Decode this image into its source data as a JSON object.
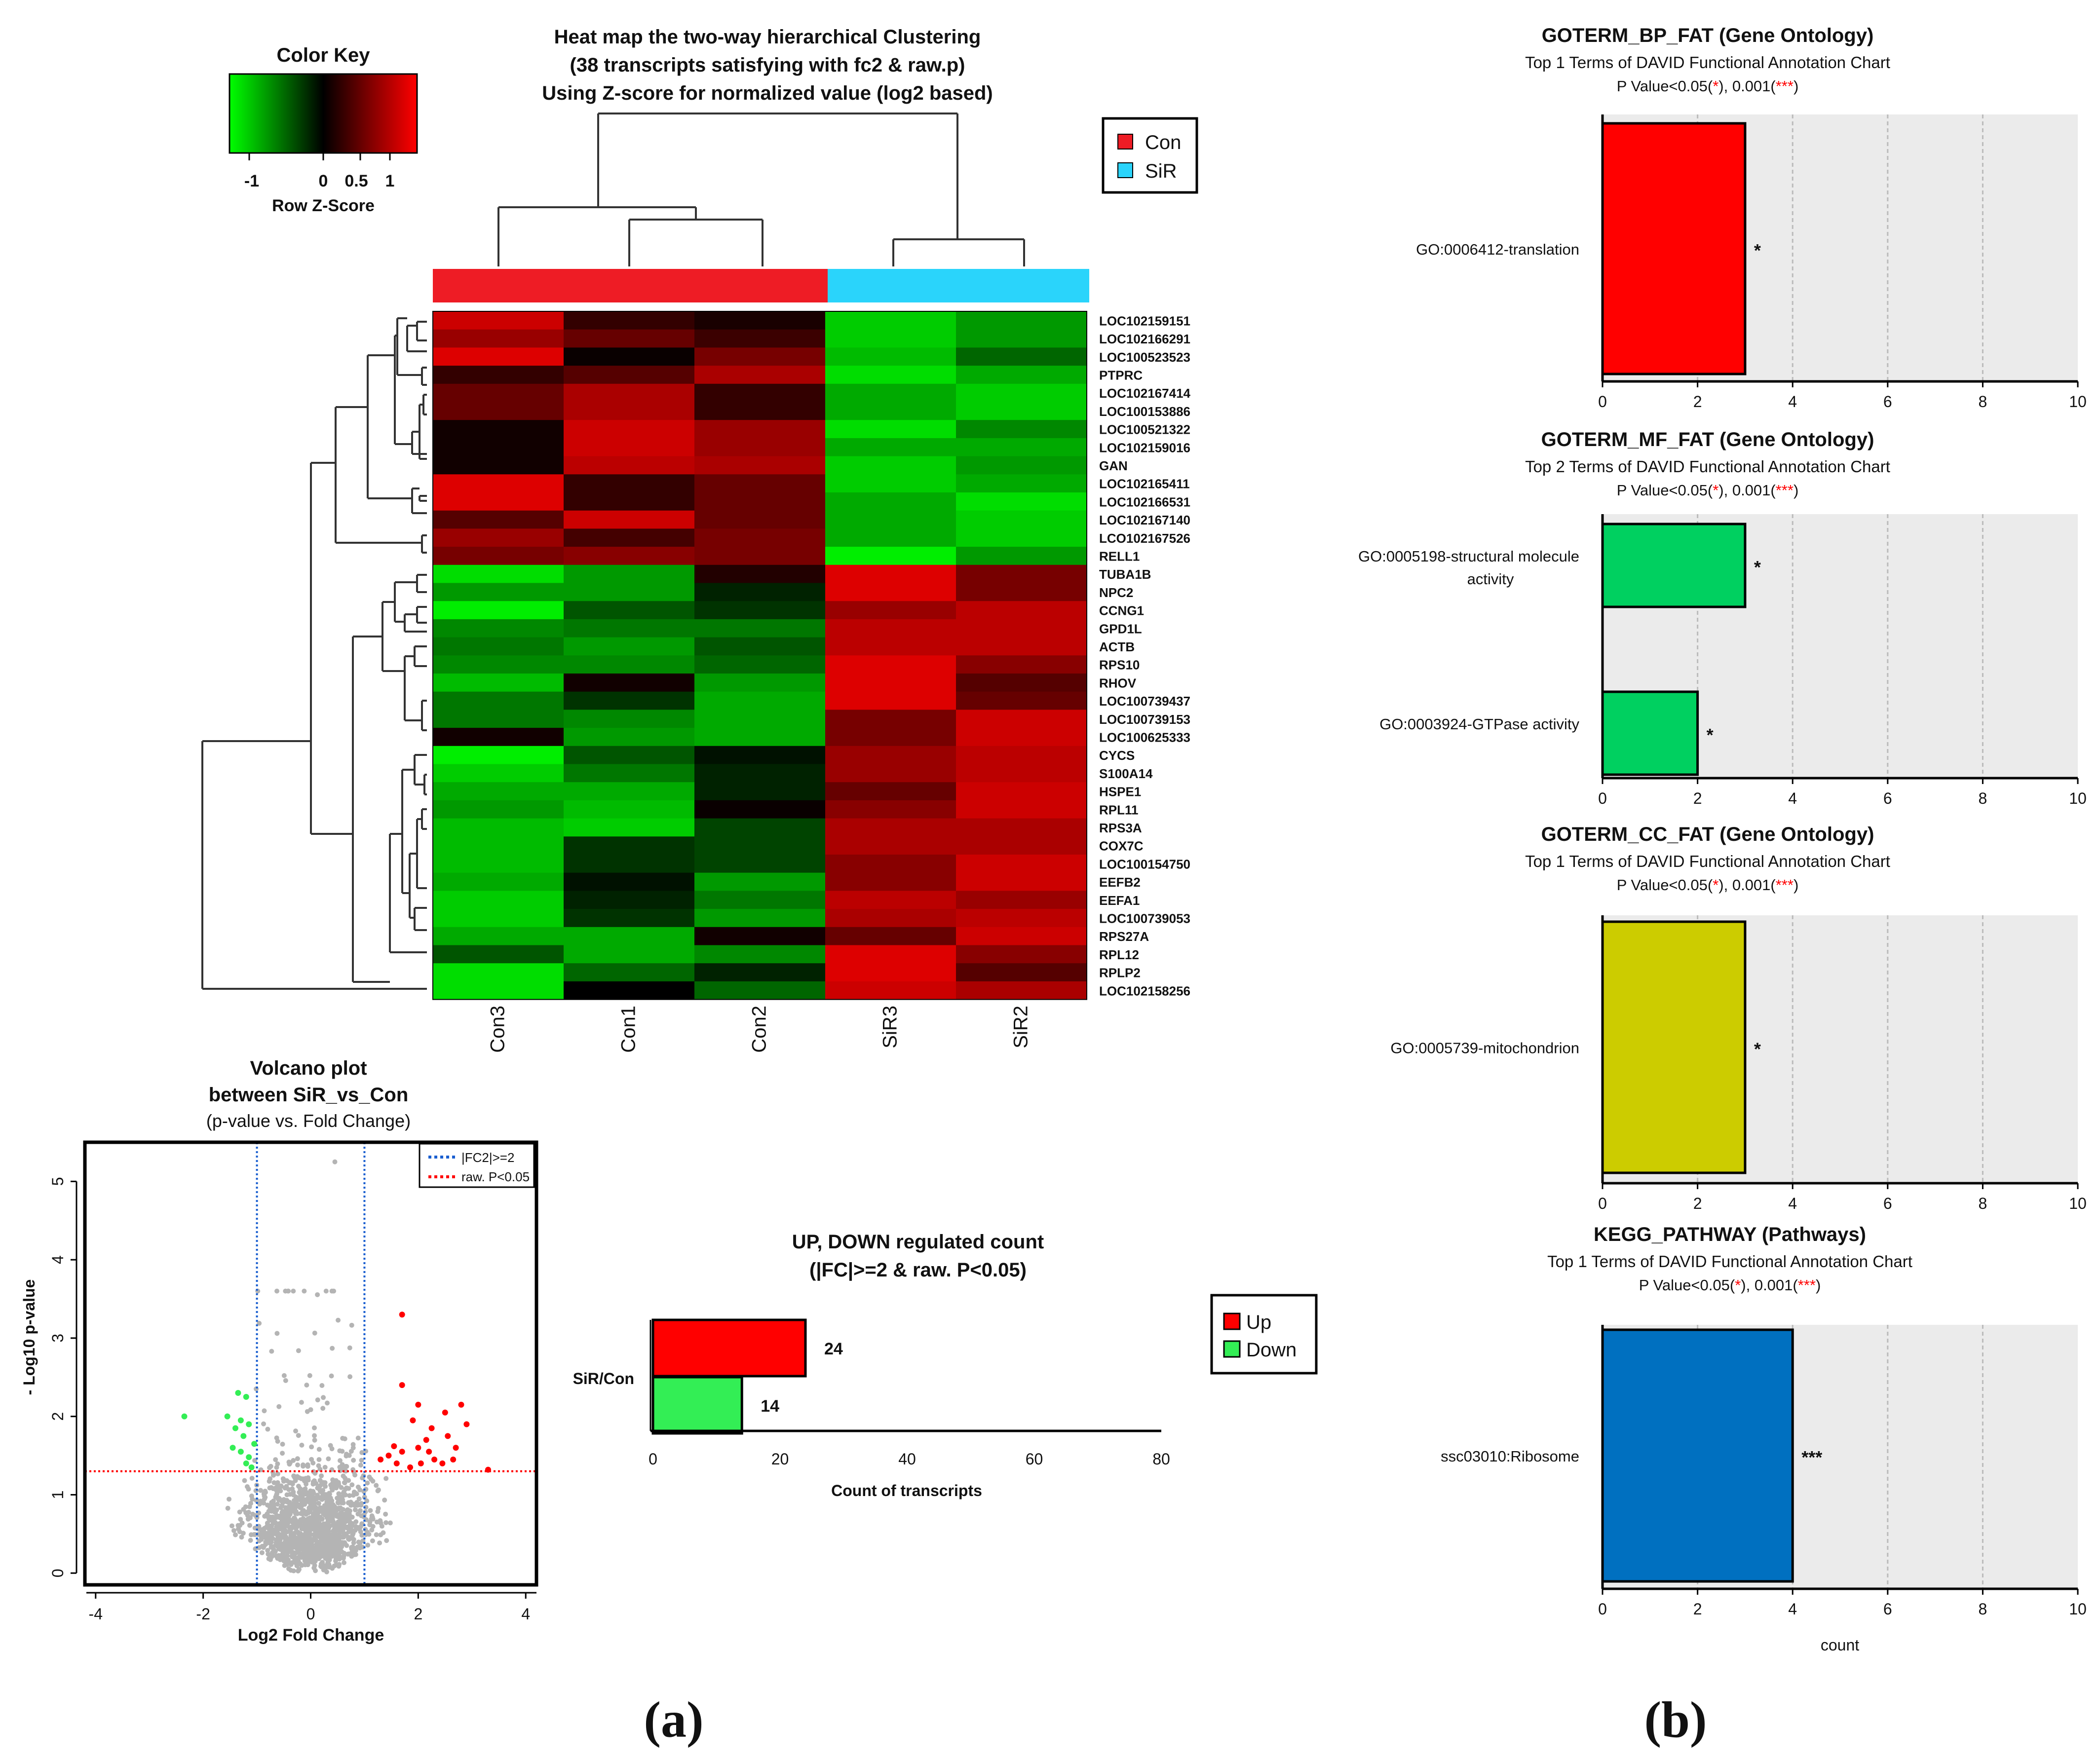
{
  "panels": {
    "a": "(a)",
    "b": "(b)"
  },
  "colors": {
    "con": "#ee1c25",
    "sir": "#2ad4fb",
    "up": "#ff0000",
    "down": "#33ee55",
    "bp_bar": "#ff0000",
    "mf_bar": "#00d060",
    "cc_bar": "#cccc00",
    "kegg_bar": "#0070c0",
    "star": "#ff0000"
  },
  "heatmap": {
    "title_lines": [
      "Heat map the two-way hierarchical Clustering",
      "(38 transcripts satisfying with fc2 & raw.p)",
      "Using Z-score for normalized value (log2 based)"
    ],
    "color_key": {
      "title": "Color Key",
      "ticks": [
        "-1",
        "0",
        "0.5",
        "1"
      ],
      "xlabel": "Row Z-Score"
    },
    "legend": [
      {
        "label": "Con",
        "color": "#ee1c25"
      },
      {
        "label": "SiR",
        "color": "#2ad4fb"
      }
    ]
  },
  "volcano": {
    "title_lines": [
      "Volcano plot",
      "between SiR_vs_Con",
      "(p-value vs. Fold Change)"
    ],
    "legend": [
      "|FC2|>=2",
      "raw. P<0.05"
    ]
  },
  "updown": {
    "title_lines": [
      "UP, DOWN regulated count",
      "(|FC|>=2 & raw. P<0.05)"
    ],
    "legend": [
      {
        "label": "Up",
        "color": "#ff0000"
      },
      {
        "label": "Down",
        "color": "#33ee55"
      }
    ]
  },
  "chart_data": [
    {
      "type": "heatmap",
      "title": "Heat map the two-way hierarchical Clustering (38 transcripts satisfying with fc2 & raw.p) Using Z-score for normalized value (log2 based)",
      "columns": [
        "Con3",
        "Con1",
        "Con2",
        "SiR3",
        "SiR2"
      ],
      "column_groups": [
        "Con",
        "Con",
        "Con",
        "SiR",
        "SiR"
      ],
      "rows": [
        "LOC102159151",
        "LOC102166291",
        "LOC100523523",
        "PTPRC",
        "LOC102167414",
        "LOC100153886",
        "LOC100521322",
        "LOC102159016",
        "GAN",
        "LOC102165411",
        "LOC102166531",
        "LOC102167140",
        "LCO102167526",
        "RELL1",
        "TUBA1B",
        "NPC2",
        "CCNG1",
        "GPD1L",
        "ACTB",
        "RPS10",
        "RHOV",
        "LOC100739437",
        "LOC100739153",
        "LOC100625333",
        "CYCS",
        "S100A14",
        "HSPE1",
        "RPL11",
        "RPS3A",
        "COX7C",
        "LOC100154750",
        "EEFB2",
        "EEFA1",
        "LOC100739053",
        "RPS27A",
        "RPL12",
        "RPLP2",
        "LOC102158256"
      ],
      "values": [
        [
          1.2,
          0.3,
          0.15,
          -1.2,
          -0.9
        ],
        [
          0.9,
          0.6,
          0.35,
          -1.2,
          -0.9
        ],
        [
          1.3,
          0.05,
          0.7,
          -1.1,
          -0.6
        ],
        [
          0.3,
          0.5,
          1.0,
          -1.3,
          -1.0
        ],
        [
          0.6,
          1.0,
          0.3,
          -1.0,
          -1.2
        ],
        [
          0.6,
          1.0,
          0.3,
          -1.0,
          -1.2
        ],
        [
          0.1,
          1.2,
          0.9,
          -1.3,
          -0.8
        ],
        [
          0.1,
          1.2,
          0.9,
          -1.0,
          -1.0
        ],
        [
          0.1,
          1.1,
          1.0,
          -1.2,
          -0.9
        ],
        [
          1.3,
          0.3,
          0.6,
          -1.2,
          -1.0
        ],
        [
          1.3,
          0.3,
          0.6,
          -1.0,
          -1.3
        ],
        [
          0.5,
          1.2,
          0.6,
          -1.0,
          -1.2
        ],
        [
          0.9,
          0.4,
          0.7,
          -1.0,
          -1.2
        ],
        [
          0.7,
          0.8,
          0.7,
          -1.4,
          -0.9
        ],
        [
          -1.3,
          -0.9,
          0.2,
          1.3,
          0.7
        ],
        [
          -0.9,
          -0.9,
          -0.2,
          1.3,
          0.7
        ],
        [
          -1.4,
          -0.5,
          -0.3,
          0.9,
          1.1
        ],
        [
          -0.8,
          -0.7,
          -0.7,
          1.1,
          1.1
        ],
        [
          -0.7,
          -0.9,
          -0.5,
          1.1,
          1.1
        ],
        [
          -0.8,
          -0.8,
          -0.6,
          1.3,
          0.8
        ],
        [
          -1.1,
          0.1,
          -0.9,
          1.3,
          0.5
        ],
        [
          -0.7,
          -0.3,
          -1.0,
          1.3,
          0.6
        ],
        [
          -0.7,
          -0.8,
          -1.0,
          0.7,
          1.2
        ],
        [
          0.1,
          -0.9,
          -1.0,
          0.7,
          1.2
        ],
        [
          -1.4,
          -0.5,
          -0.1,
          0.9,
          1.1
        ],
        [
          -1.2,
          -0.7,
          -0.2,
          0.9,
          1.1
        ],
        [
          -1.0,
          -1.0,
          -0.2,
          0.6,
          1.2
        ],
        [
          -0.9,
          -1.1,
          0.05,
          0.8,
          1.2
        ],
        [
          -1.1,
          -1.2,
          -0.4,
          1.0,
          1.0
        ],
        [
          -1.1,
          -0.3,
          -0.4,
          1.0,
          1.0
        ],
        [
          -1.1,
          -0.3,
          -0.4,
          0.8,
          1.2
        ],
        [
          -1.0,
          -0.1,
          -0.9,
          0.8,
          1.2
        ],
        [
          -1.2,
          -0.2,
          -0.7,
          1.1,
          0.9
        ],
        [
          -1.2,
          -0.3,
          -0.9,
          1.0,
          1.1
        ],
        [
          -1.0,
          -1.0,
          0.1,
          0.6,
          1.2
        ],
        [
          -0.5,
          -1.0,
          -0.8,
          1.3,
          0.8
        ],
        [
          -1.3,
          -0.6,
          -0.2,
          1.3,
          0.5
        ],
        [
          -1.3,
          0.0,
          -0.6,
          1.2,
          1.0
        ]
      ],
      "scale": {
        "min": -1.5,
        "max": 1.5,
        "low_color": "#00ff00",
        "mid_color": "#000000",
        "high_color": "#ff0000"
      }
    },
    {
      "type": "scatter",
      "title": "Volcano plot between SiR_vs_Con (p-value vs. Fold Change)",
      "xlabel": "Log2 Fold Change",
      "ylabel": "- Log10 p-value",
      "xlim": [
        -4.2,
        4.2
      ],
      "ylim": [
        -0.15,
        5.5
      ],
      "xticks": [
        -4,
        -2,
        0,
        2,
        4
      ],
      "yticks": [
        0,
        1,
        2,
        3,
        4,
        5
      ],
      "thresholds": {
        "fc_lines": [
          -1,
          1
        ],
        "p_line": 1.3
      },
      "series": [
        {
          "name": "Down",
          "color": "#33ee55",
          "points": [
            [
              -2.35,
              2.0
            ],
            [
              -1.35,
              2.3
            ],
            [
              -1.2,
              2.25
            ],
            [
              -1.4,
              1.85
            ],
            [
              -1.25,
              1.75
            ],
            [
              -1.45,
              1.6
            ],
            [
              -1.3,
              1.55
            ],
            [
              -1.15,
              1.48
            ],
            [
              -1.1,
              1.35
            ],
            [
              -1.2,
              1.4
            ],
            [
              -1.55,
              2.0
            ],
            [
              -1.05,
              1.65
            ],
            [
              -1.3,
              1.95
            ],
            [
              -1.15,
              1.9
            ]
          ]
        },
        {
          "name": "Up",
          "color": "#ff0000",
          "points": [
            [
              1.7,
              3.3
            ],
            [
              1.7,
              2.4
            ],
            [
              2.0,
              2.15
            ],
            [
              2.8,
              2.15
            ],
            [
              2.5,
              2.05
            ],
            [
              2.9,
              1.9
            ],
            [
              2.25,
              1.85
            ],
            [
              2.55,
              1.75
            ],
            [
              1.45,
              1.5
            ],
            [
              1.7,
              1.55
            ],
            [
              2.0,
              1.6
            ],
            [
              2.3,
              1.45
            ],
            [
              1.6,
              1.4
            ],
            [
              1.85,
              1.35
            ],
            [
              2.2,
              1.55
            ],
            [
              2.45,
              1.4
            ],
            [
              1.3,
              1.45
            ],
            [
              2.65,
              1.45
            ],
            [
              2.05,
              1.4
            ],
            [
              3.3,
              1.32
            ],
            [
              1.55,
              1.62
            ],
            [
              2.15,
              1.7
            ],
            [
              2.7,
              1.6
            ],
            [
              1.9,
              1.95
            ]
          ]
        },
        {
          "name": "NS",
          "color": "#b4b4b4",
          "generated_count": 1400,
          "seed": 11
        }
      ]
    },
    {
      "type": "bar",
      "orientation": "horizontal",
      "title": "UP, DOWN regulated count (|FC|>=2 & raw. P<0.05)",
      "categories": [
        "SiR/Con"
      ],
      "series": [
        {
          "name": "Up",
          "values": [
            24
          ]
        },
        {
          "name": "Down",
          "values": [
            14
          ]
        }
      ],
      "xlabel": "Count of transcripts",
      "xlim": [
        0,
        80
      ],
      "xticks": [
        0,
        20,
        40,
        60,
        80
      ]
    },
    {
      "type": "bar",
      "orientation": "horizontal",
      "title": "GOTERM_BP_FAT (Gene Ontology)",
      "subtitle": "Top 1 Terms of DAVID Functional Annotation Chart",
      "pvalue_note": [
        "P Value<0.05(",
        "*",
        "), 0.001(",
        "***",
        ")"
      ],
      "categories": [
        "GO:0006412-translation"
      ],
      "values": [
        3
      ],
      "stars": [
        "*"
      ],
      "xlim": [
        0,
        10
      ],
      "xticks": [
        0,
        2,
        4,
        6,
        8,
        10
      ],
      "xlabel": ""
    },
    {
      "type": "bar",
      "orientation": "horizontal",
      "title": "GOTERM_MF_FAT (Gene Ontology)",
      "subtitle": "Top 2 Terms of DAVID Functional Annotation Chart",
      "pvalue_note": [
        "P Value<0.05(",
        "*",
        "), 0.001(",
        "***",
        ")"
      ],
      "categories": [
        [
          "GO:0005198-structural molecule",
          "activity"
        ],
        [
          "GO:0003924-GTPase activity"
        ]
      ],
      "values": [
        3,
        2
      ],
      "stars": [
        "*",
        "*"
      ],
      "xlim": [
        0,
        10
      ],
      "xticks": [
        0,
        2,
        4,
        6,
        8,
        10
      ],
      "xlabel": ""
    },
    {
      "type": "bar",
      "orientation": "horizontal",
      "title": "GOTERM_CC_FAT (Gene Ontology)",
      "subtitle": "Top 1 Terms of DAVID Functional Annotation Chart",
      "pvalue_note": [
        "P Value<0.05(",
        "*",
        "), 0.001(",
        "***",
        ")"
      ],
      "categories": [
        "GO:0005739-mitochondrion"
      ],
      "values": [
        3
      ],
      "stars": [
        "*"
      ],
      "xlim": [
        0,
        10
      ],
      "xticks": [
        0,
        2,
        4,
        6,
        8,
        10
      ],
      "xlabel": ""
    },
    {
      "type": "bar",
      "orientation": "horizontal",
      "title": "KEGG_PATHWAY (Pathways)",
      "subtitle": "Top 1 Terms of DAVID Functional Annotation Chart",
      "pvalue_note": [
        "P Value<0.05(",
        "*",
        "), 0.001(",
        "***",
        ")"
      ],
      "categories": [
        "ssc03010:Ribosome"
      ],
      "values": [
        4
      ],
      "stars": [
        "***"
      ],
      "xlim": [
        0,
        10
      ],
      "xticks": [
        0,
        2,
        4,
        6,
        8,
        10
      ],
      "xlabel": "count"
    }
  ]
}
